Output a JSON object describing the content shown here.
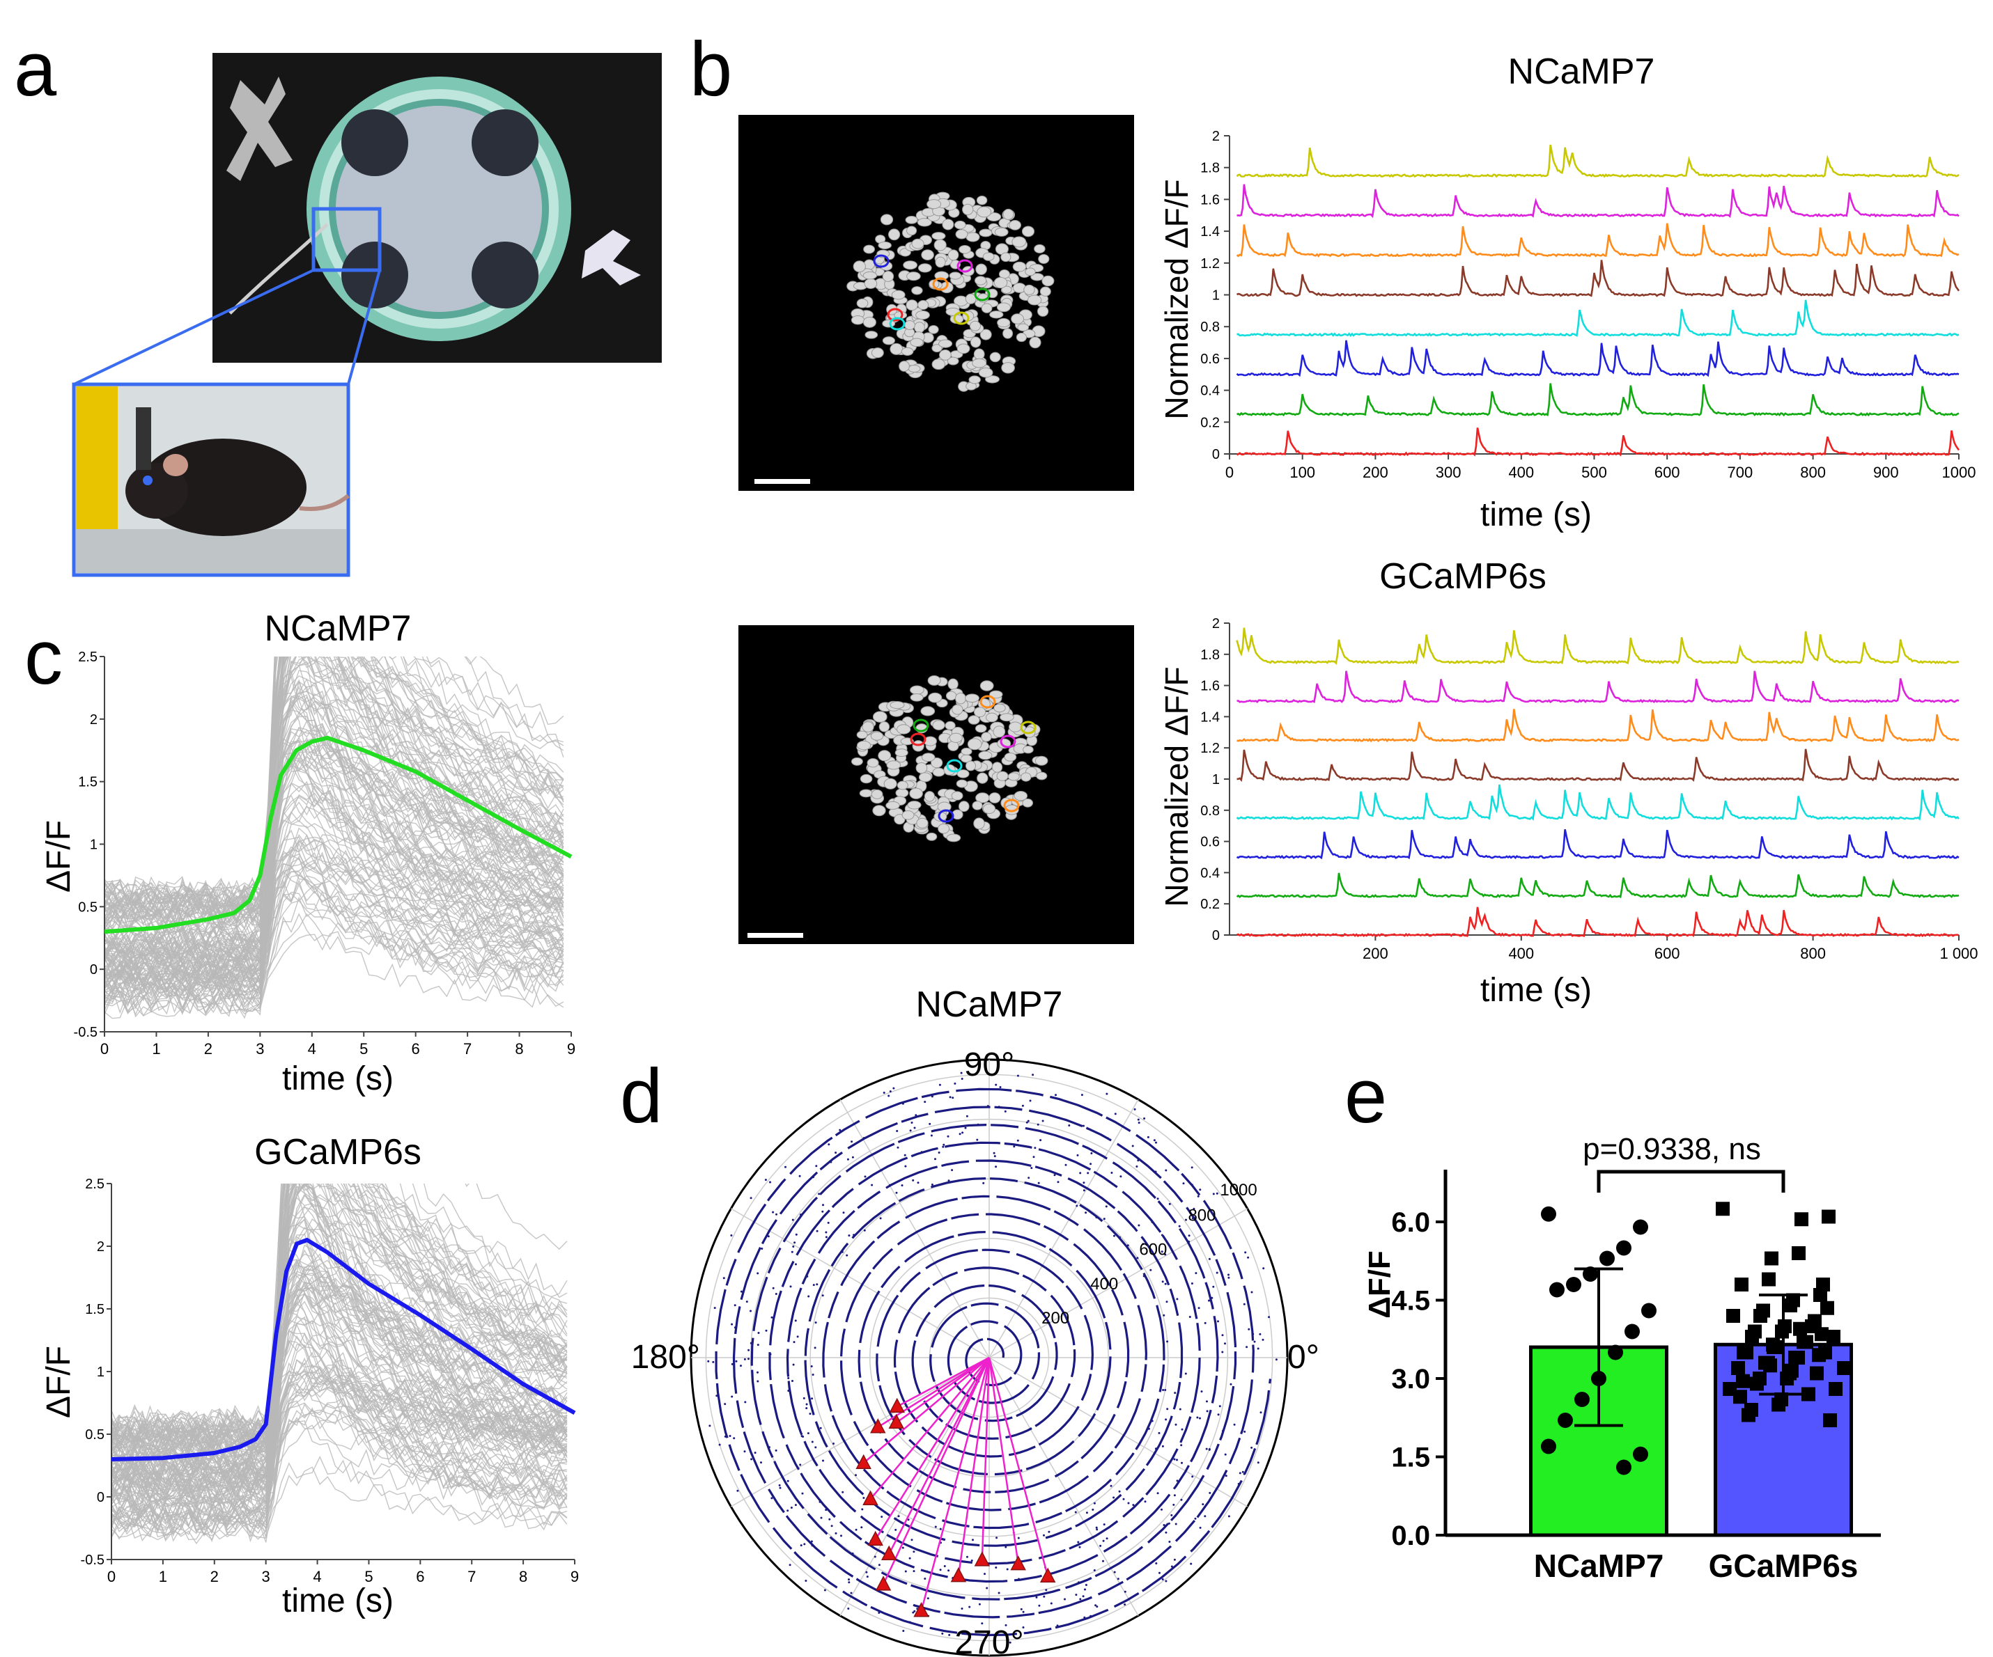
{
  "panels": {
    "a": {
      "letter": "a"
    },
    "b": {
      "letter": "b",
      "title_top": "NCaMP7",
      "title_bottom": "GCaMP6s",
      "ylabel": "Normalized ΔF/F",
      "xlabel": "time (s)"
    },
    "c": {
      "letter": "c",
      "title_top": "NCaMP7",
      "title_bottom": "GCaMP6s",
      "ylabel": "ΔF/F",
      "xlabel": "time (s)"
    },
    "d": {
      "letter": "d",
      "title": "NCaMP7",
      "angle_labels": {
        "a90": "90°",
        "a180": "180°",
        "a0": "0°",
        "a270": "270°"
      }
    },
    "e": {
      "letter": "e",
      "ylabel": "ΔF/F",
      "pvalue": "p=0.9338, ns"
    }
  },
  "colors": {
    "yellow": "#c8c800",
    "magenta": "#dd22dd",
    "orange": "#ff8c1a",
    "brown": "#8b3a2a",
    "cyan": "#11dddd",
    "blue": "#2020dd",
    "green": "#11aa11",
    "red": "#ee2222",
    "green_bar": "#22ee22",
    "blue_bar": "#5555ff",
    "navy": "#1a1a80",
    "pink": "#ee22cc"
  },
  "chart_data": [
    {
      "id": "b_top",
      "type": "line",
      "title": "NCaMP7",
      "xlabel": "time (s)",
      "ylabel": "Normalized ΔF/F",
      "xlim": [
        0,
        1000
      ],
      "ylim": [
        0,
        2
      ],
      "xticks": [
        "0",
        "100",
        "200",
        "300",
        "400",
        "500",
        "600",
        "700",
        "800",
        "900",
        "1000"
      ],
      "yticks": [
        "0",
        "0.2",
        "0.4",
        "0.6",
        "0.8",
        "1",
        "1.2",
        "1.4",
        "1.6",
        "1.8",
        "2"
      ],
      "series": [
        {
          "name": "yellow",
          "baseline": 1.75,
          "peaks": [
            110,
            440,
            460,
            470,
            630,
            820,
            960
          ]
        },
        {
          "name": "magenta",
          "baseline": 1.5,
          "peaks": [
            20,
            200,
            310,
            420,
            600,
            690,
            740,
            750,
            760,
            850,
            970
          ]
        },
        {
          "name": "orange",
          "baseline": 1.25,
          "peaks": [
            20,
            80,
            320,
            400,
            520,
            590,
            600,
            650,
            740,
            810,
            850,
            870,
            930,
            980
          ]
        },
        {
          "name": "brown",
          "baseline": 1.0,
          "peaks": [
            60,
            100,
            320,
            380,
            400,
            500,
            510,
            600,
            680,
            740,
            760,
            830,
            860,
            880,
            940,
            990
          ]
        },
        {
          "name": "cyan",
          "baseline": 0.75,
          "peaks": [
            480,
            620,
            690,
            780,
            790
          ]
        },
        {
          "name": "blue",
          "baseline": 0.5,
          "peaks": [
            100,
            150,
            160,
            210,
            250,
            270,
            350,
            430,
            510,
            530,
            580,
            660,
            670,
            740,
            760,
            820,
            840,
            940
          ]
        },
        {
          "name": "green",
          "baseline": 0.25,
          "peaks": [
            100,
            190,
            280,
            360,
            440,
            540,
            550,
            650,
            800,
            950
          ]
        },
        {
          "name": "red",
          "baseline": 0.0,
          "peaks": [
            80,
            340,
            540,
            820,
            990
          ]
        }
      ]
    },
    {
      "id": "b_bottom",
      "type": "line",
      "title": "GCaMP6s",
      "xlabel": "time (s)",
      "ylabel": "Normalized ΔF/F",
      "xlim": [
        0,
        1000
      ],
      "ylim": [
        0,
        2
      ],
      "xticks": [
        "200",
        "400",
        "600",
        "800",
        "1 000"
      ],
      "yticks": [
        "0",
        "0.2",
        "0.4",
        "0.6",
        "0.8",
        "1",
        "1.2",
        "1.4",
        "1.6",
        "1.8",
        "2"
      ],
      "series": [
        {
          "name": "yellow",
          "baseline": 1.75,
          "peaks": [
            10,
            20,
            30,
            150,
            260,
            270,
            380,
            390,
            460,
            550,
            620,
            700,
            790,
            810,
            870,
            920
          ]
        },
        {
          "name": "magenta",
          "baseline": 1.5,
          "peaks": [
            120,
            160,
            240,
            290,
            380,
            520,
            640,
            720,
            750,
            800,
            920
          ]
        },
        {
          "name": "orange",
          "baseline": 1.25,
          "peaks": [
            70,
            260,
            380,
            390,
            550,
            580,
            660,
            680,
            740,
            750,
            830,
            850,
            900,
            970
          ]
        },
        {
          "name": "brown",
          "baseline": 1.0,
          "peaks": [
            20,
            50,
            140,
            250,
            310,
            350,
            540,
            640,
            790,
            850,
            890
          ]
        },
        {
          "name": "cyan",
          "baseline": 0.75,
          "peaks": [
            180,
            200,
            270,
            330,
            360,
            370,
            420,
            460,
            480,
            520,
            550,
            620,
            680,
            780,
            950,
            970
          ]
        },
        {
          "name": "blue",
          "baseline": 0.5,
          "peaks": [
            130,
            170,
            250,
            310,
            330,
            460,
            540,
            600,
            730,
            850,
            900
          ]
        },
        {
          "name": "green",
          "baseline": 0.25,
          "peaks": [
            150,
            260,
            330,
            400,
            420,
            490,
            540,
            630,
            660,
            700,
            780,
            870,
            910
          ]
        },
        {
          "name": "red",
          "baseline": 0.0,
          "peaks": [
            330,
            340,
            350,
            420,
            490,
            560,
            640,
            700,
            710,
            730,
            760,
            890
          ]
        }
      ]
    },
    {
      "id": "c_top",
      "type": "line",
      "title": "NCaMP7",
      "xlabel": "time (s)",
      "ylabel": "ΔF/F",
      "xlim": [
        0,
        9
      ],
      "ylim": [
        -0.5,
        2.5
      ],
      "xticks": [
        "0",
        "1",
        "2",
        "3",
        "4",
        "5",
        "6",
        "7",
        "8",
        "9"
      ],
      "yticks": [
        "-0.5",
        "0",
        "0.5",
        "1",
        "1.5",
        "2",
        "2.5"
      ],
      "mean_trace": {
        "x": [
          0,
          1,
          2,
          2.5,
          2.8,
          3.0,
          3.2,
          3.4,
          3.7,
          4.0,
          4.3,
          5,
          6,
          7,
          8,
          9
        ],
        "y": [
          0.3,
          0.33,
          0.4,
          0.45,
          0.55,
          0.75,
          1.2,
          1.55,
          1.75,
          1.82,
          1.85,
          1.75,
          1.58,
          1.35,
          1.12,
          0.9
        ]
      }
    },
    {
      "id": "c_bottom",
      "type": "line",
      "title": "GCaMP6s",
      "xlabel": "time (s)",
      "ylabel": "ΔF/F",
      "xlim": [
        0,
        9
      ],
      "ylim": [
        -0.5,
        2.5
      ],
      "xticks": [
        "0",
        "1",
        "2",
        "3",
        "4",
        "5",
        "6",
        "7",
        "8",
        "9"
      ],
      "yticks": [
        "-0.5",
        "0",
        "0.5",
        "1",
        "1.5",
        "2",
        "2.5"
      ],
      "mean_trace": {
        "x": [
          0,
          1,
          2,
          2.5,
          2.8,
          3.0,
          3.2,
          3.4,
          3.6,
          3.8,
          4.2,
          5,
          6,
          7,
          8,
          9
        ],
        "y": [
          0.3,
          0.31,
          0.35,
          0.4,
          0.46,
          0.58,
          1.3,
          1.8,
          2.02,
          2.05,
          1.95,
          1.7,
          1.45,
          1.18,
          0.9,
          0.67
        ]
      }
    },
    {
      "id": "d",
      "type": "scatter",
      "title": "NCaMP7",
      "radial_ticks": [
        "200",
        "400",
        "600",
        "800",
        "1000"
      ],
      "angle_labels": [
        "90°",
        "180°",
        "0°",
        "270°"
      ]
    },
    {
      "id": "e",
      "type": "bar",
      "ylabel": "ΔF/F",
      "categories": [
        "NCaMP7",
        "GCaMP6s"
      ],
      "values": [
        3.6,
        3.65
      ],
      "errors": [
        1.5,
        0.95
      ],
      "ylim": [
        0,
        7
      ],
      "yticks": [
        "0.0",
        "1.5",
        "3.0",
        "4.5",
        "6.0"
      ],
      "annotation": "p=0.9338, ns",
      "points": [
        [
          6.15,
          5.9,
          5.5,
          5.3,
          5.0,
          4.8,
          4.7,
          4.3,
          3.9,
          3.5,
          3.0,
          2.6,
          2.2,
          1.7,
          1.55,
          1.3
        ],
        [
          6.25,
          6.1,
          6.05,
          5.4,
          5.3,
          4.9,
          4.8,
          4.8,
          4.6,
          4.5,
          4.4,
          4.3,
          4.2,
          4.2,
          4.1,
          4.0,
          4.0,
          3.9,
          3.9,
          3.8,
          3.8,
          3.7,
          3.7,
          3.6,
          3.6,
          3.5,
          3.5,
          3.5,
          3.4,
          3.4,
          3.3,
          3.3,
          3.2,
          3.2,
          3.1,
          3.1,
          3.0,
          3.0,
          2.9,
          2.8,
          2.8,
          2.7,
          2.6,
          2.5,
          2.4,
          2.3,
          2.2,
          4.35,
          3.95,
          3.65,
          3.25,
          2.95,
          2.65,
          3.85,
          3.45,
          3.15
        ]
      ]
    }
  ]
}
